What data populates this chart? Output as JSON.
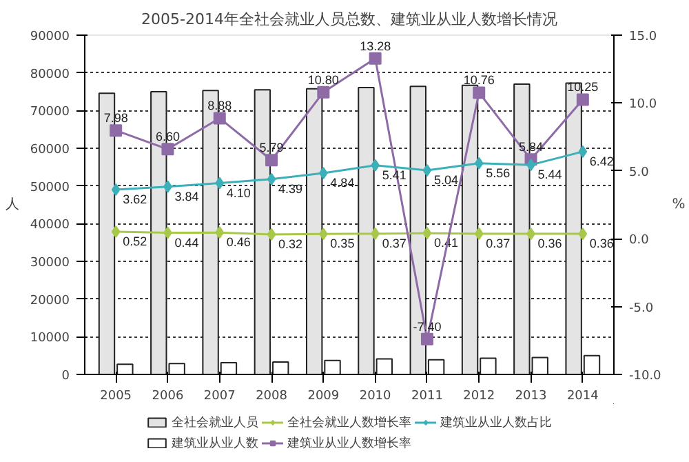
{
  "chart_data": {
    "type": "bar",
    "title": "2005-2014年全社会就业人员总数、建筑业从业人数增长情况",
    "ylabel": "人",
    "y2label": "%",
    "categories": [
      "2005",
      "2006",
      "2007",
      "2008",
      "2009",
      "2010",
      "2011",
      "2012",
      "2013",
      "2014"
    ],
    "ylim": [
      0,
      90000
    ],
    "yticks": [
      0,
      10000,
      20000,
      30000,
      40000,
      50000,
      60000,
      70000,
      80000,
      90000
    ],
    "y2lim": [
      -10,
      15
    ],
    "y2ticks": [
      {
        "value": -10,
        "label": "-10.0"
      },
      {
        "value": -5,
        "label": "-5.0"
      },
      {
        "value": 0,
        "label": "0.0"
      },
      {
        "value": 5,
        "label": "5.0"
      },
      {
        "value": 10,
        "label": "10.0"
      },
      {
        "value": 15,
        "label": "15.0"
      }
    ],
    "grid": "y",
    "legend": "bottom",
    "series": [
      {
        "name": "全社会就业人员",
        "type": "bar",
        "color": "#e4e4e4",
        "values": [
          74600,
          75000,
          75300,
          75500,
          75800,
          76100,
          76400,
          76700,
          77000,
          77300
        ]
      },
      {
        "name": "建筑业从业人数",
        "type": "bar",
        "color": "#ffffff",
        "values": [
          2700,
          2900,
          3100,
          3300,
          3700,
          4100,
          3900,
          4300,
          4500,
          5000
        ]
      },
      {
        "name": "全社会就业人数增长率",
        "type": "line",
        "axis": "y2",
        "marker": "diamond",
        "color": "#a8c84a",
        "values": [
          0.52,
          0.44,
          0.46,
          0.32,
          0.35,
          0.37,
          0.41,
          0.37,
          0.36,
          0.36
        ],
        "value_labels": [
          "0.52",
          "0.44",
          "0.46",
          "0.32",
          "0.35",
          "0.37",
          "0.41",
          "0.37",
          "0.36",
          "0.36"
        ]
      },
      {
        "name": "建筑业从业人数增长率",
        "type": "line",
        "axis": "y2",
        "marker": "square",
        "color": "#8e6aa6",
        "values": [
          7.98,
          6.6,
          8.88,
          5.79,
          10.8,
          13.28,
          -7.4,
          10.76,
          5.84,
          10.25
        ],
        "value_labels": [
          "7.98",
          "6.60",
          "8.88",
          "5.79",
          "10.80",
          "13.28",
          "-7.40",
          "10.76",
          "5.84",
          "10.25"
        ]
      },
      {
        "name": "建筑业从业人数占比",
        "type": "line",
        "axis": "y2",
        "marker": "diamond",
        "color": "#3bb0b8",
        "values": [
          3.62,
          3.84,
          4.1,
          4.39,
          4.84,
          5.41,
          5.04,
          5.56,
          5.44,
          6.42
        ],
        "value_labels": [
          "3.62",
          "3.84",
          "4.10",
          "4.39",
          "4.84",
          "5.41",
          "5.04",
          "5.56",
          "5.44",
          "6.42"
        ]
      }
    ]
  }
}
